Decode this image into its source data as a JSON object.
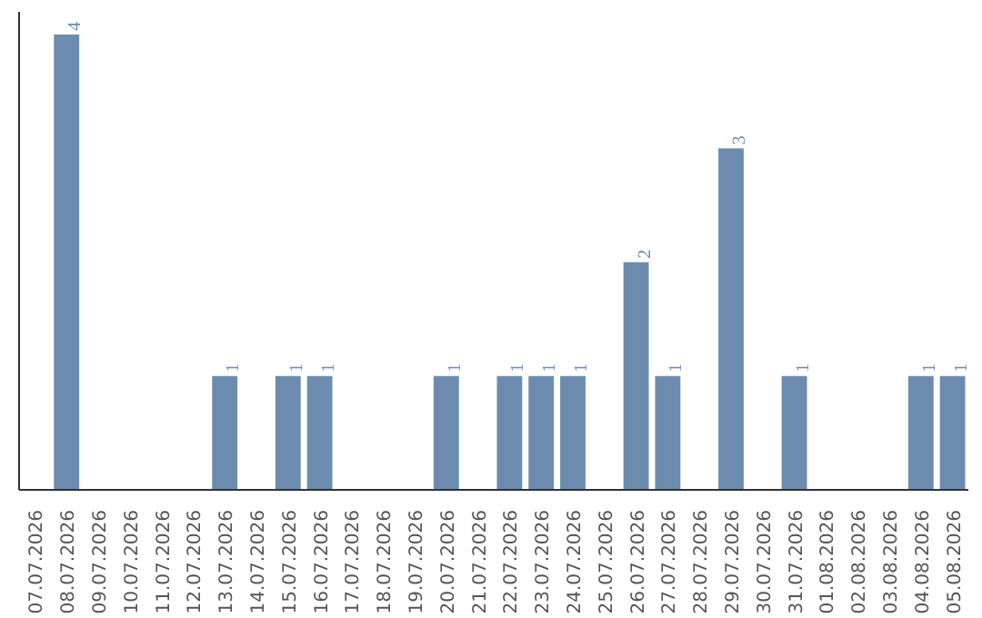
{
  "chart_data": {
    "type": "bar",
    "categories": [
      "07.07.2026",
      "08.07.2026",
      "09.07.2026",
      "10.07.2026",
      "11.07.2026",
      "12.07.2026",
      "13.07.2026",
      "14.07.2026",
      "15.07.2026",
      "16.07.2026",
      "17.07.2026",
      "18.07.2026",
      "19.07.2026",
      "20.07.2026",
      "21.07.2026",
      "22.07.2026",
      "23.07.2026",
      "24.07.2026",
      "25.07.2026",
      "26.07.2026",
      "27.07.2026",
      "28.07.2026",
      "29.07.2026",
      "30.07.2026",
      "31.07.2026",
      "01.08.2026",
      "02.08.2026",
      "03.08.2026",
      "04.08.2026",
      "05.08.2026"
    ],
    "values": [
      0,
      4,
      0,
      0,
      0,
      0,
      1,
      0,
      1,
      1,
      0,
      0,
      0,
      1,
      0,
      1,
      1,
      1,
      0,
      2,
      1,
      0,
      3,
      0,
      1,
      0,
      0,
      0,
      1,
      1
    ],
    "value_labels": [
      null,
      "4",
      null,
      null,
      null,
      null,
      "1",
      null,
      "1",
      "1",
      null,
      null,
      null,
      "1",
      null,
      "1",
      "1",
      "1",
      null,
      "2",
      "1",
      null,
      "3",
      null,
      "1",
      null,
      null,
      null,
      "1",
      "1"
    ],
    "color": "#6b8cae",
    "tick_labels": "x"
  }
}
